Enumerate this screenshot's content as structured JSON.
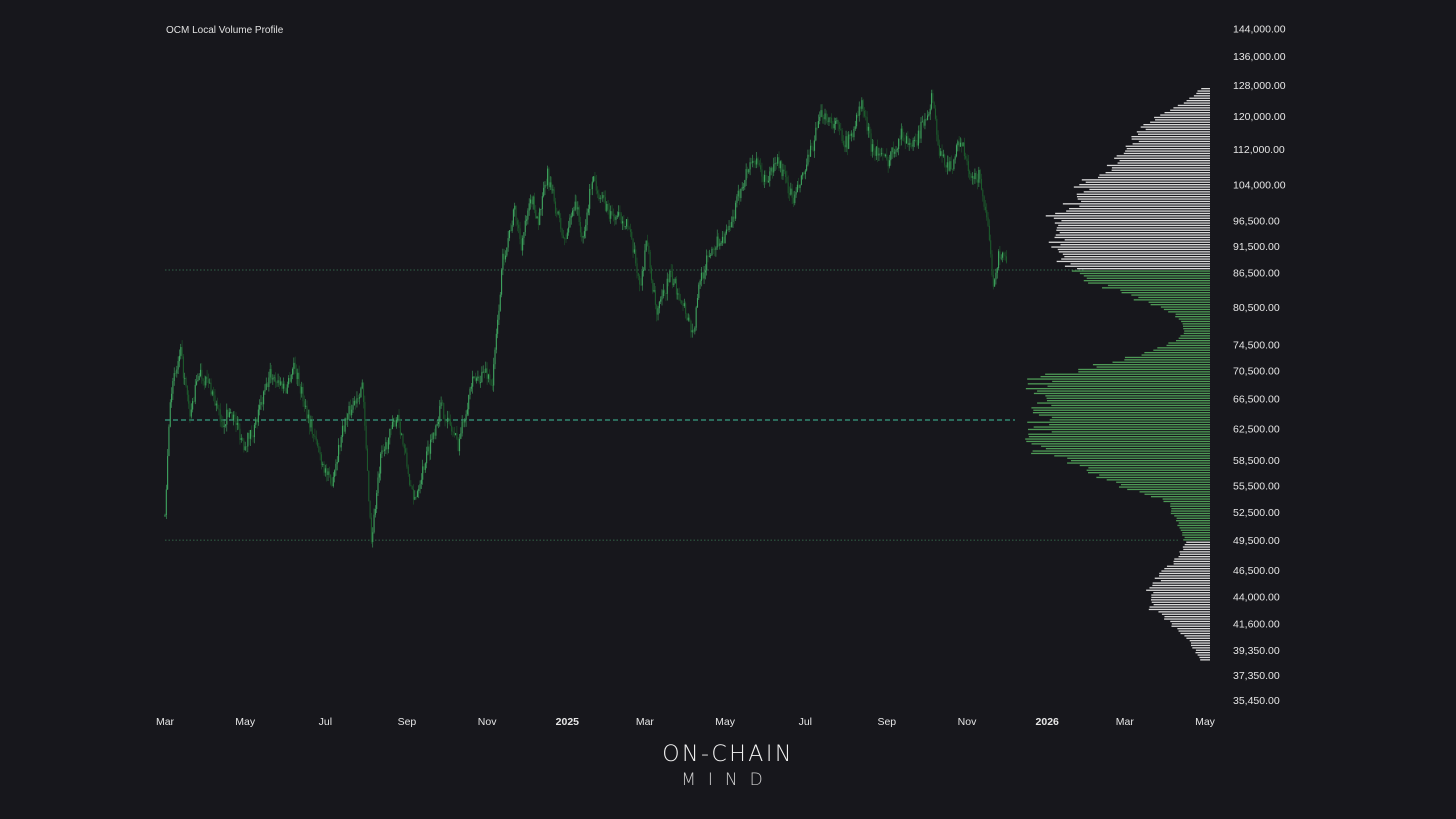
{
  "chart_data": {
    "type": "candlestick",
    "title": "OCM Local Volume Profile",
    "colors": {
      "background": "#17171c",
      "candle": "#3fa35f",
      "candle_dark": "#1c5a2c",
      "profile_value_area": "#4e9a56",
      "profile_outside": "#d9d9d9",
      "poc_line": "#3fbf9a",
      "range_line": "#3a7a55"
    },
    "y_axis": {
      "scale": "log",
      "range": [
        35450,
        146000
      ],
      "ticks": [
        "144,000.00",
        "136,000.00",
        "128,000.00",
        "120,000.00",
        "112,000.00",
        "104,000.00",
        "96,500.00",
        "91,500.00",
        "86,500.00",
        "80,500.00",
        "74,500.00",
        "70,500.00",
        "66,500.00",
        "62,500.00",
        "58,500.00",
        "55,500.00",
        "52,500.00",
        "49,500.00",
        "46,500.00",
        "44,000.00",
        "41,600.00",
        "39,350.00",
        "37,350.00",
        "35,450.00"
      ]
    },
    "x_axis": {
      "range": [
        "2024-03-01",
        "2026-05-01"
      ],
      "ticks": [
        {
          "date": "2024-03-01",
          "label": "Mar",
          "bold": false
        },
        {
          "date": "2024-05-01",
          "label": "May",
          "bold": false
        },
        {
          "date": "2024-07-01",
          "label": "Jul",
          "bold": false
        },
        {
          "date": "2024-09-01",
          "label": "Sep",
          "bold": false
        },
        {
          "date": "2024-11-01",
          "label": "Nov",
          "bold": false
        },
        {
          "date": "2025-01-01",
          "label": "2025",
          "bold": true
        },
        {
          "date": "2025-03-01",
          "label": "Mar",
          "bold": false
        },
        {
          "date": "2025-05-01",
          "label": "May",
          "bold": false
        },
        {
          "date": "2025-07-01",
          "label": "Jul",
          "bold": false
        },
        {
          "date": "2025-09-01",
          "label": "Sep",
          "bold": false
        },
        {
          "date": "2025-11-01",
          "label": "Nov",
          "bold": false
        },
        {
          "date": "2026-01-01",
          "label": "2026",
          "bold": true
        },
        {
          "date": "2026-03-01",
          "label": "Mar",
          "bold": false
        },
        {
          "date": "2026-05-01",
          "label": "May",
          "bold": false
        }
      ]
    },
    "price_path": [
      {
        "date": "2024-03-01",
        "close": 52000
      },
      {
        "date": "2024-03-05",
        "close": 67000
      },
      {
        "date": "2024-03-13",
        "close": 73000
      },
      {
        "date": "2024-03-20",
        "close": 64000
      },
      {
        "date": "2024-03-27",
        "close": 70500
      },
      {
        "date": "2024-04-05",
        "close": 68000
      },
      {
        "date": "2024-04-13",
        "close": 63000
      },
      {
        "date": "2024-04-20",
        "close": 65000
      },
      {
        "date": "2024-04-30",
        "close": 60500
      },
      {
        "date": "2024-05-08",
        "close": 62500
      },
      {
        "date": "2024-05-20",
        "close": 70000
      },
      {
        "date": "2024-06-01",
        "close": 68000
      },
      {
        "date": "2024-06-07",
        "close": 71500
      },
      {
        "date": "2024-06-15",
        "close": 66000
      },
      {
        "date": "2024-06-24",
        "close": 60500
      },
      {
        "date": "2024-07-05",
        "close": 55500
      },
      {
        "date": "2024-07-15",
        "close": 63000
      },
      {
        "date": "2024-07-29",
        "close": 68500
      },
      {
        "date": "2024-08-05",
        "close": 49500
      },
      {
        "date": "2024-08-12",
        "close": 58500
      },
      {
        "date": "2024-08-25",
        "close": 64500
      },
      {
        "date": "2024-09-06",
        "close": 53500
      },
      {
        "date": "2024-09-15",
        "close": 58500
      },
      {
        "date": "2024-09-27",
        "close": 65500
      },
      {
        "date": "2024-10-10",
        "close": 60500
      },
      {
        "date": "2024-10-20",
        "close": 68500
      },
      {
        "date": "2024-10-31",
        "close": 70500
      },
      {
        "date": "2024-11-05",
        "close": 68500
      },
      {
        "date": "2024-11-13",
        "close": 89000
      },
      {
        "date": "2024-11-22",
        "close": 98500
      },
      {
        "date": "2024-11-27",
        "close": 92000
      },
      {
        "date": "2024-12-05",
        "close": 101000
      },
      {
        "date": "2024-12-10",
        "close": 96500
      },
      {
        "date": "2024-12-17",
        "close": 106000
      },
      {
        "date": "2024-12-30",
        "close": 92000
      },
      {
        "date": "2025-01-07",
        "close": 101000
      },
      {
        "date": "2025-01-13",
        "close": 92000
      },
      {
        "date": "2025-01-20",
        "close": 106000
      },
      {
        "date": "2025-01-27",
        "close": 101000
      },
      {
        "date": "2025-02-03",
        "close": 97500
      },
      {
        "date": "2025-02-15",
        "close": 96500
      },
      {
        "date": "2025-02-26",
        "close": 84000
      },
      {
        "date": "2025-03-02",
        "close": 93000
      },
      {
        "date": "2025-03-10",
        "close": 79000
      },
      {
        "date": "2025-03-20",
        "close": 86000
      },
      {
        "date": "2025-03-29",
        "close": 82000
      },
      {
        "date": "2025-04-07",
        "close": 76000
      },
      {
        "date": "2025-04-12",
        "close": 85500
      },
      {
        "date": "2025-04-22",
        "close": 91500
      },
      {
        "date": "2025-05-05",
        "close": 94500
      },
      {
        "date": "2025-05-13",
        "close": 103500
      },
      {
        "date": "2025-05-22",
        "close": 110000
      },
      {
        "date": "2025-06-01",
        "close": 104500
      },
      {
        "date": "2025-06-10",
        "close": 109500
      },
      {
        "date": "2025-06-22",
        "close": 100500
      },
      {
        "date": "2025-07-01",
        "close": 107000
      },
      {
        "date": "2025-07-14",
        "close": 121000
      },
      {
        "date": "2025-07-25",
        "close": 117500
      },
      {
        "date": "2025-08-02",
        "close": 113000
      },
      {
        "date": "2025-08-13",
        "close": 123000
      },
      {
        "date": "2025-08-20",
        "close": 113000
      },
      {
        "date": "2025-09-01",
        "close": 109000
      },
      {
        "date": "2025-09-12",
        "close": 115500
      },
      {
        "date": "2025-09-22",
        "close": 112500
      },
      {
        "date": "2025-10-06",
        "close": 125000
      },
      {
        "date": "2025-10-11",
        "close": 110500
      },
      {
        "date": "2025-10-20",
        "close": 108000
      },
      {
        "date": "2025-10-27",
        "close": 114500
      },
      {
        "date": "2025-11-04",
        "close": 104500
      },
      {
        "date": "2025-11-11",
        "close": 106000
      },
      {
        "date": "2025-11-17",
        "close": 94000
      },
      {
        "date": "2025-11-21",
        "close": 85000
      },
      {
        "date": "2025-11-26",
        "close": 90500
      },
      {
        "date": "2025-12-01",
        "close": 88500
      }
    ],
    "volume_profile": {
      "value_area_low": 49500,
      "value_area_high": 87000,
      "poc": 63600,
      "peaks": [
        {
          "price": 38500,
          "weight": 0.04
        },
        {
          "price": 41000,
          "weight": 0.12
        },
        {
          "price": 43500,
          "weight": 0.3
        },
        {
          "price": 46000,
          "weight": 0.2
        },
        {
          "price": 48500,
          "weight": 0.1
        },
        {
          "price": 52000,
          "weight": 0.18
        },
        {
          "price": 56500,
          "weight": 0.55
        },
        {
          "price": 60500,
          "weight": 0.85
        },
        {
          "price": 63500,
          "weight": 0.95
        },
        {
          "price": 67000,
          "weight": 1.0
        },
        {
          "price": 70500,
          "weight": 0.52
        },
        {
          "price": 75000,
          "weight": 0.14
        },
        {
          "price": 82000,
          "weight": 0.28
        },
        {
          "price": 86500,
          "weight": 0.58
        },
        {
          "price": 91500,
          "weight": 0.62
        },
        {
          "price": 97000,
          "weight": 0.72
        },
        {
          "price": 103500,
          "weight": 0.6
        },
        {
          "price": 110000,
          "weight": 0.38
        },
        {
          "price": 117000,
          "weight": 0.32
        },
        {
          "price": 123000,
          "weight": 0.08
        }
      ]
    }
  },
  "branding": {
    "line1": "ON-CHAIN",
    "line2": "MIND"
  }
}
